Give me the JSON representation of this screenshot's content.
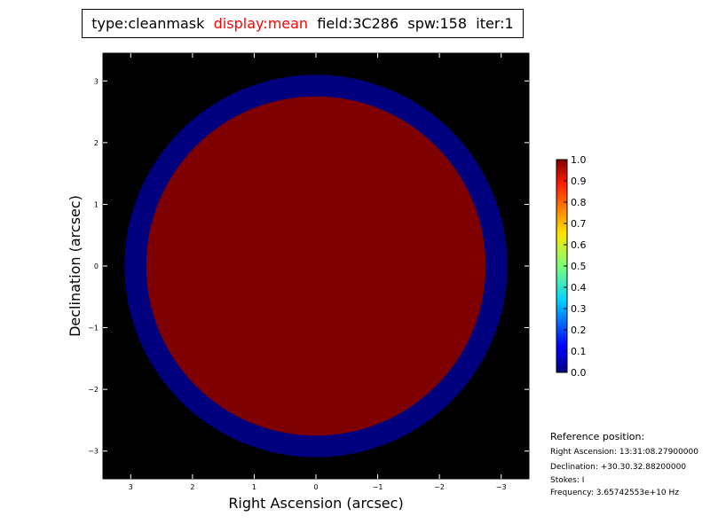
{
  "title_parts": {
    "type": "type:cleanmask",
    "display": "display:mean",
    "field": "field:3C286",
    "spw": "spw:158",
    "iter": "iter:1"
  },
  "colors": {
    "display_text": "#ff0000",
    "background": "#000000",
    "outer_ring": "#00007f",
    "inner_disk": "#7f0000"
  },
  "chart_data": {
    "type": "heatmap",
    "xlabel": "Right Ascension (arcsec)",
    "ylabel": "Declination (arcsec)",
    "xlim": [
      3.45,
      -3.45
    ],
    "ylim": [
      -3.45,
      3.45
    ],
    "xticks": [
      "3",
      "2",
      "1",
      "0",
      "−1",
      "−2",
      "−3"
    ],
    "yticks": [
      "3",
      "2",
      "1",
      "0",
      "−1",
      "−2",
      "−3"
    ],
    "regions": [
      {
        "shape": "disk",
        "center": [
          0,
          0
        ],
        "radius_arcsec": 3.1,
        "value": 0.0
      },
      {
        "shape": "disk",
        "center": [
          0,
          0
        ],
        "radius_arcsec": 2.75,
        "value": 1.0
      }
    ],
    "colormap": "jet",
    "colorbar": {
      "range": [
        0.0,
        1.0
      ],
      "ticks": [
        "0.0",
        "0.1",
        "0.2",
        "0.3",
        "0.4",
        "0.5",
        "0.6",
        "0.7",
        "0.8",
        "0.9",
        "1.0"
      ]
    }
  },
  "reference": {
    "heading": "Reference position:",
    "ra": "Right Ascension: 13:31:08.27900000",
    "dec": "Declination: +30.30.32.88200000",
    "stokes": "Stokes: I",
    "freq": "Frequency: 3.65742553e+10 Hz"
  }
}
